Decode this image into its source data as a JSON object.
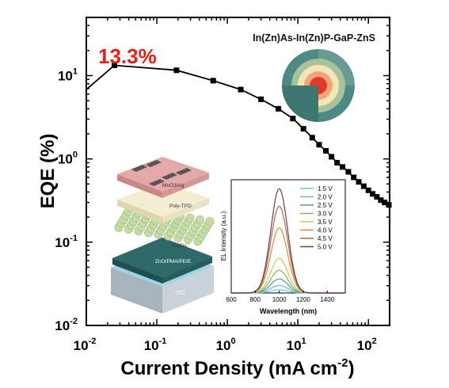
{
  "chart_data": {
    "type": "line",
    "xlabel": "Current Density (mA cm",
    "xlabel_sup": "-2",
    "xlabel_end": ")",
    "ylabel": "EQE (%)",
    "xscale": "log",
    "yscale": "log",
    "xlim": [
      0.01,
      200
    ],
    "ylim": [
      0.01,
      50
    ],
    "x_ticks": [
      {
        "base": "10",
        "exp": "-2"
      },
      {
        "base": "10",
        "exp": "-1"
      },
      {
        "base": "10",
        "exp": "0"
      },
      {
        "base": "10",
        "exp": "1"
      },
      {
        "base": "10",
        "exp": "2"
      }
    ],
    "y_ticks": [
      {
        "base": "10",
        "exp": "-2"
      },
      {
        "base": "10",
        "exp": "-1"
      },
      {
        "base": "10",
        "exp": "0"
      },
      {
        "base": "10",
        "exp": "1"
      }
    ],
    "peak_label": "13.3%",
    "peak_color": "#e8201c",
    "device_label": "In(Zn)As-In(Zn)P-GaP-ZnS",
    "series": [
      {
        "color": "#000000",
        "x": [
          0.01,
          0.025,
          0.19,
          0.63,
          1.55,
          3.0,
          5.3,
          8.5,
          12,
          16,
          20,
          25,
          30,
          36,
          43,
          52,
          62,
          73,
          86,
          100,
          115,
          132,
          150,
          170,
          195
        ],
        "y": [
          6.8,
          13.3,
          11.6,
          8.7,
          6.8,
          5.2,
          4.0,
          3.05,
          2.3,
          1.8,
          1.48,
          1.25,
          1.06,
          0.9,
          0.8,
          0.7,
          0.6,
          0.53,
          0.47,
          0.42,
          0.38,
          0.35,
          0.32,
          0.3,
          0.28
        ]
      }
    ],
    "inset_device_layers": [
      "MoO3/Ag",
      "Poly-TPD",
      "CQDs",
      "ZnO/PMA/PEIE",
      "ITO"
    ],
    "inset_el": {
      "type": "line",
      "xlabel": "Wavelength (nm)",
      "ylabel": "EL Intensity (a.u.)",
      "xlim": [
        600,
        1550
      ],
      "x_ticks": [
        "600",
        "800",
        "1000",
        "1200",
        "1400"
      ],
      "peak_nm": 1000,
      "series": [
        {
          "name": "1.5 V",
          "color": "#5fd0e0",
          "peak": 0.03
        },
        {
          "name": "2.0 V",
          "color": "#7fb4c8",
          "peak": 0.07
        },
        {
          "name": "2.5 V",
          "color": "#4e9a8c",
          "peak": 0.13
        },
        {
          "name": "3.0 V",
          "color": "#86b45a",
          "peak": 0.21
        },
        {
          "name": "3.5 V",
          "color": "#c8c46a",
          "peak": 0.32
        },
        {
          "name": "4.0 V",
          "color": "#e08a2c",
          "peak": 0.6
        },
        {
          "name": "4.5 V",
          "color": "#b06a3c",
          "peak": 0.8
        },
        {
          "name": "5.0 V",
          "color": "#6a3c5c",
          "peak": 0.96
        }
      ]
    }
  }
}
